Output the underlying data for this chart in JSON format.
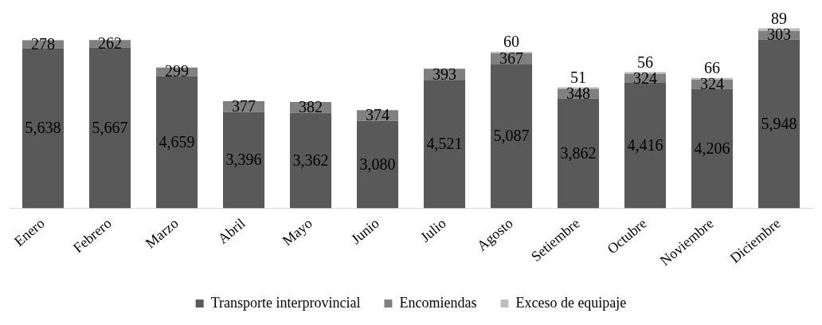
{
  "chart_data": {
    "type": "bar",
    "stacked": true,
    "legend": "bottom",
    "grid": false,
    "categories": [
      "Enero",
      "Febrero",
      "Marzo",
      "Abril",
      "Mayo",
      "Junio",
      "Julio",
      "Agosto",
      "Setiembre",
      "Octubre",
      "Noviembre",
      "Diciembre"
    ],
    "series": [
      {
        "name": "Transporte interprovincial",
        "color": "#595959",
        "values": [
          5638,
          5667,
          4659,
          3396,
          3362,
          3080,
          4521,
          5087,
          3862,
          4416,
          4206,
          5948
        ],
        "value_labels": [
          "5,638",
          "5,667",
          "4,659",
          "3,396",
          "3,362",
          "3,080",
          "4,521",
          "5,087",
          "3,862",
          "4,416",
          "4,206",
          "5,948"
        ]
      },
      {
        "name": "Encomiendas",
        "color": "#808080",
        "values": [
          278,
          262,
          299,
          377,
          382,
          374,
          393,
          367,
          348,
          324,
          324,
          303
        ],
        "value_labels": [
          "278",
          "262",
          "299",
          "377",
          "382",
          "374",
          "393",
          "367",
          "348",
          "324",
          "324",
          "303"
        ]
      },
      {
        "name": "Exceso de equipaje",
        "color": "#bfbfbf",
        "values": [
          null,
          null,
          null,
          null,
          null,
          null,
          null,
          60,
          51,
          56,
          66,
          89
        ],
        "value_labels": [
          null,
          null,
          null,
          null,
          null,
          null,
          null,
          "60",
          "51",
          "56",
          "66",
          "89"
        ]
      }
    ]
  }
}
